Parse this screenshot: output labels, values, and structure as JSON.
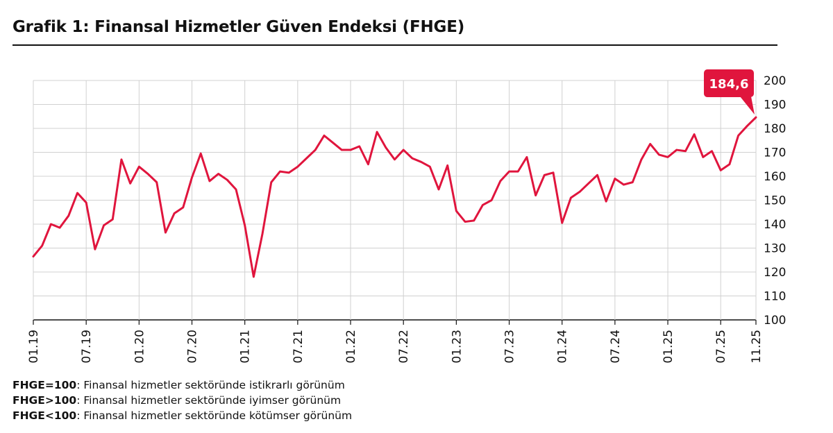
{
  "title": "Grafik 1: Finansal Hizmetler Güven Endeksi (FHGE)",
  "notes": [
    {
      "key": "FHGE=100",
      "text": ": Finansal hizmetler sektöründe istikrarlı görünüm"
    },
    {
      "key": "FHGE>100",
      "text": ": Finansal hizmetler sektöründe iyimser görünüm"
    },
    {
      "key": "FHGE<100",
      "text": ": Finansal hizmetler sektöründe kötümser görünüm"
    }
  ],
  "colors": {
    "line": "#e0153d",
    "grid": "#d0d0d0",
    "axis": "#111111"
  },
  "chart_data": {
    "type": "line",
    "title": "Grafik 1: Finansal Hizmetler Güven Endeksi (FHGE)",
    "xlabel": "",
    "ylabel": "",
    "ylim": [
      100,
      200
    ],
    "yticks": [
      100,
      110,
      120,
      130,
      140,
      150,
      160,
      170,
      180,
      190,
      200
    ],
    "xticks": [
      "01.19",
      "07.19",
      "01.20",
      "07.20",
      "01.21",
      "07.21",
      "01.22",
      "07.22",
      "01.23",
      "07.23",
      "01.24",
      "07.24",
      "01.25",
      "07.25",
      "11.25"
    ],
    "grid": true,
    "y_axis_position": "right",
    "last_value_label": "184,6",
    "series": [
      {
        "x": [
          "01.19",
          "02.19",
          "03.19",
          "04.19",
          "05.19",
          "06.19",
          "07.19",
          "08.19",
          "09.19",
          "10.19",
          "11.19",
          "12.19",
          "01.20",
          "02.20",
          "03.20",
          "04.20",
          "05.20",
          "06.20",
          "07.20",
          "08.20",
          "09.20",
          "10.20",
          "11.20",
          "12.20",
          "01.21",
          "02.21",
          "03.21",
          "04.21",
          "05.21",
          "06.21",
          "07.21",
          "08.21",
          "09.21",
          "10.21",
          "11.21",
          "12.21",
          "01.22",
          "02.22",
          "03.22",
          "04.22",
          "05.22",
          "06.22",
          "07.22",
          "08.22",
          "09.22",
          "10.22",
          "11.22",
          "12.22",
          "01.23",
          "02.23",
          "03.23",
          "04.23",
          "05.23",
          "06.23",
          "07.23",
          "08.23",
          "09.23",
          "10.23",
          "11.23",
          "12.23",
          "01.24",
          "02.24",
          "03.24",
          "04.24",
          "05.24",
          "06.24",
          "07.24",
          "08.24",
          "09.24",
          "10.24",
          "11.24",
          "12.24",
          "01.25",
          "02.25",
          "03.25",
          "04.25",
          "05.25",
          "06.25",
          "07.25",
          "08.25",
          "09.25",
          "10.25",
          "11.25"
        ],
        "values": [
          126.5,
          131,
          140,
          138.5,
          143.5,
          153,
          149,
          129.5,
          139.5,
          142,
          167,
          157,
          164,
          161,
          157.5,
          136.5,
          144.5,
          147,
          159.5,
          169.5,
          158,
          161,
          158.5,
          154.5,
          139.5,
          118,
          136,
          157.5,
          162,
          161.5,
          164,
          167.5,
          171,
          177,
          174,
          171,
          171,
          172.5,
          165,
          178.5,
          172,
          167,
          171,
          167.5,
          166,
          164,
          154.5,
          164.5,
          145.5,
          141,
          141.5,
          148,
          150,
          158,
          162,
          162,
          168,
          152,
          160.5,
          161.5,
          140.5,
          151,
          153.5,
          157,
          160.5,
          149.5,
          159,
          156.5,
          157.5,
          167,
          173.5,
          169,
          168,
          171,
          170.5,
          177.5,
          168,
          170.5,
          162.5,
          165,
          177,
          181,
          184.6
        ]
      }
    ]
  }
}
